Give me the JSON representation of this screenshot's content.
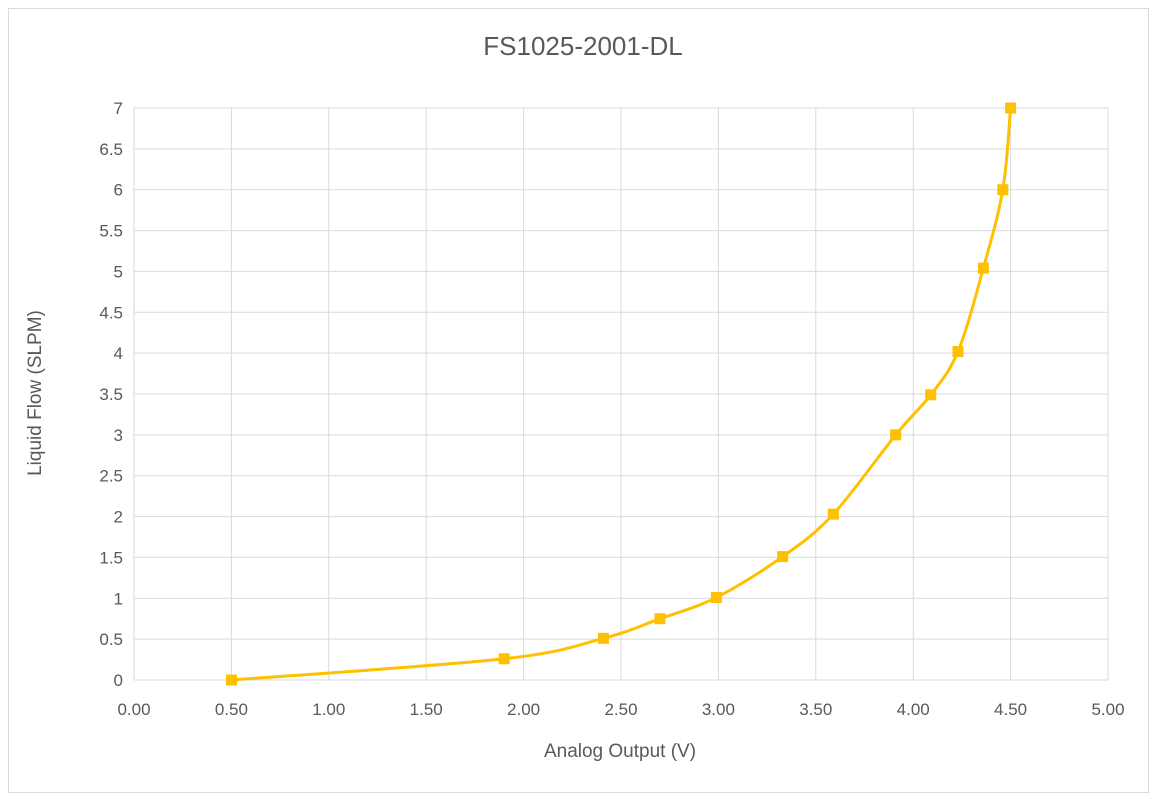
{
  "chart_data": {
    "type": "scatter",
    "title": "FS1025-2001-DL",
    "xlabel": "Analog Output (V)",
    "ylabel": "Liquid Flow (SLPM)",
    "xlim": [
      0,
      5
    ],
    "ylim": [
      0,
      7
    ],
    "x_ticks": [
      "0.00",
      "0.50",
      "1.00",
      "1.50",
      "2.00",
      "2.50",
      "3.00",
      "3.50",
      "4.00",
      "4.50",
      "5.00"
    ],
    "y_ticks": [
      "0",
      "0.5",
      "1",
      "1.5",
      "2",
      "2.5",
      "3",
      "3.5",
      "4",
      "4.5",
      "5",
      "5.5",
      "6",
      "6.5",
      "7"
    ],
    "grid": true,
    "legend": "none",
    "line_style": "smooth",
    "marker": "square",
    "series": [
      {
        "color": "#FFC000",
        "points": [
          {
            "x": 0.5,
            "y": 0.0
          },
          {
            "x": 1.9,
            "y": 0.26
          },
          {
            "x": 2.41,
            "y": 0.51
          },
          {
            "x": 2.7,
            "y": 0.75
          },
          {
            "x": 2.99,
            "y": 1.01
          },
          {
            "x": 3.33,
            "y": 1.51
          },
          {
            "x": 3.59,
            "y": 2.03
          },
          {
            "x": 3.91,
            "y": 3.0
          },
          {
            "x": 4.09,
            "y": 3.49
          },
          {
            "x": 4.23,
            "y": 4.02
          },
          {
            "x": 4.36,
            "y": 5.04
          },
          {
            "x": 4.46,
            "y": 6.0
          },
          {
            "x": 4.5,
            "y": 7.0
          }
        ]
      }
    ]
  }
}
